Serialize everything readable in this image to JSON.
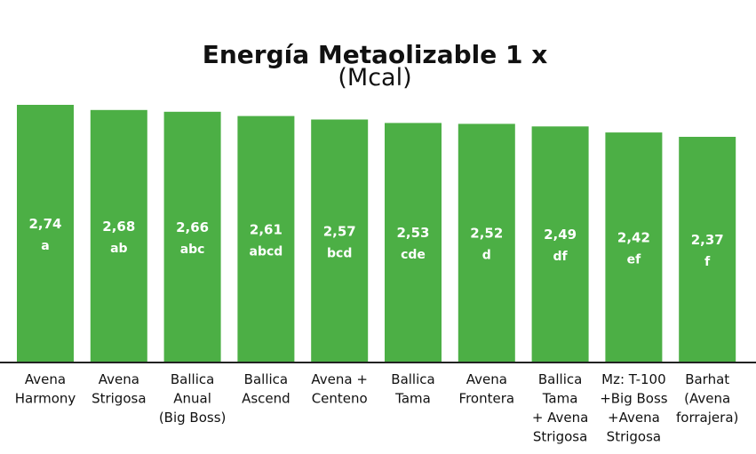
{
  "chart_data": {
    "type": "bar",
    "title": "Energía Metaolizable 1 x",
    "subtitle": "(Mcal)",
    "categories": [
      [
        "Avena",
        "Harmony"
      ],
      [
        "Avena",
        "Strigosa"
      ],
      [
        "Ballica",
        "Anual",
        "(Big Boss)"
      ],
      [
        "Ballica",
        "Ascend"
      ],
      [
        "Avena +",
        "Centeno"
      ],
      [
        "Ballica",
        "Tama"
      ],
      [
        "Avena",
        "Frontera"
      ],
      [
        "Ballica",
        "Tama",
        "+ Avena",
        "Strigosa"
      ],
      [
        "Mz: T-100",
        "+Big Boss",
        "+Avena",
        "Strigosa"
      ],
      [
        "Barhat",
        "(Avena",
        "forrajera)"
      ]
    ],
    "values": [
      2.74,
      2.68,
      2.66,
      2.61,
      2.57,
      2.53,
      2.52,
      2.49,
      2.42,
      2.37
    ],
    "value_labels": [
      "2,74",
      "2,68",
      "2,66",
      "2,61",
      "2,57",
      "2,53",
      "2,52",
      "2,49",
      "2,42",
      "2,37"
    ],
    "significance_letters": [
      "a",
      "ab",
      "abc",
      "abcd",
      "bcd",
      "cde",
      "d",
      "df",
      "ef",
      "f"
    ],
    "bar_color": "#4caf45",
    "axis_color": "#222222",
    "grid": false,
    "legend": "none"
  }
}
